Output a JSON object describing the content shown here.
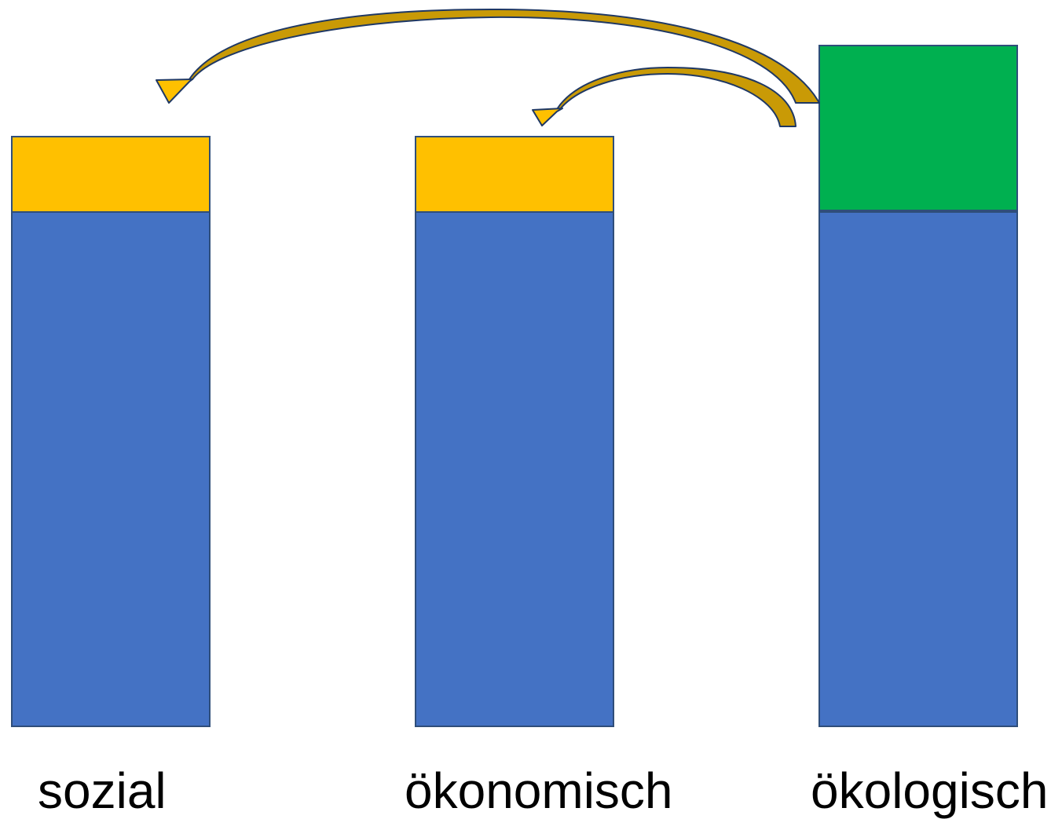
{
  "columns": [
    {
      "label": "sozial",
      "top_segment_color": "#FFC000",
      "base_color": "#4472C4"
    },
    {
      "label": "ökonomisch",
      "top_segment_color": "#FFC000",
      "base_color": "#4472C4"
    },
    {
      "label": "ökologisch",
      "top_segment_color": "#00B050",
      "base_color": "#4472C4"
    }
  ],
  "arrows": [
    {
      "from": "ökologisch",
      "to": "sozial",
      "fill": "#C99A06",
      "head_fill": "#FFC000"
    },
    {
      "from": "ökologisch",
      "to": "ökonomisch",
      "fill": "#C99A06",
      "head_fill": "#FFC000"
    }
  ],
  "colors": {
    "outline": "#2F4E7A",
    "arrow_outline": "#1F3864"
  }
}
